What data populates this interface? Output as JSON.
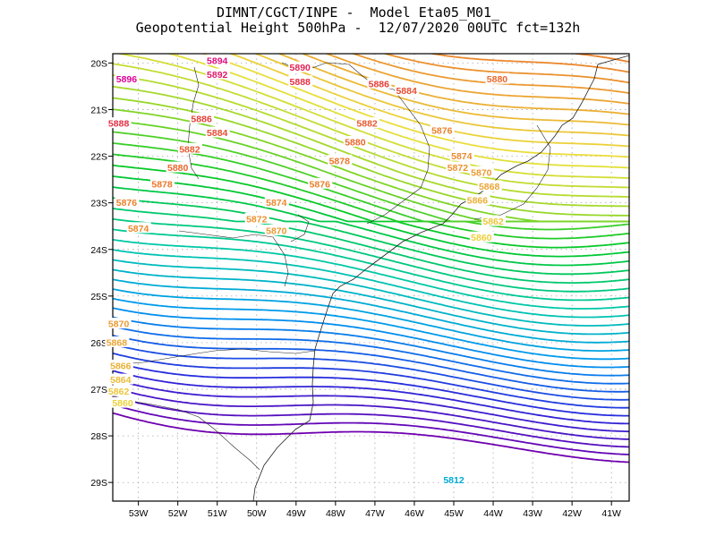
{
  "header": {
    "line1": "DIMNT/CGCT/INPE -  Model Eta05_M01_",
    "line2": "Geopotential Height 500hPa -  12/07/2020 00UTC fct=132h"
  },
  "axes": {
    "lat_labels": [
      "20S",
      "21S",
      "22S",
      "23S",
      "24S",
      "25S",
      "26S",
      "27S",
      "28S",
      "29S"
    ],
    "lon_labels": [
      "53W",
      "52W",
      "51W",
      "50W",
      "49W",
      "48W",
      "47W",
      "46W",
      "45W",
      "44W",
      "43W",
      "42W",
      "41W"
    ],
    "lat_range": [
      -29.4,
      -19.8
    ],
    "lon_range": [
      -53.65,
      -40.55
    ]
  },
  "chart_data": {
    "type": "contour",
    "variable": "Geopotential Height 500hPa",
    "contour_interval": 2,
    "value_range": [
      5782,
      5896
    ],
    "contour_labels": [
      {
        "value": 5896,
        "lon": -53.3,
        "lat": -20.35
      },
      {
        "value": 5894,
        "lon": -51.0,
        "lat": -19.95
      },
      {
        "value": 5892,
        "lon": -51.0,
        "lat": -20.25
      },
      {
        "value": 5890,
        "lon": -48.9,
        "lat": -20.1
      },
      {
        "value": 5888,
        "lon": -48.9,
        "lat": -20.4
      },
      {
        "value": 5886,
        "lon": -46.9,
        "lat": -20.45
      },
      {
        "value": 5884,
        "lon": -46.2,
        "lat": -20.6
      },
      {
        "value": 5888,
        "lon": -53.5,
        "lat": -21.3
      },
      {
        "value": 5886,
        "lon": -51.4,
        "lat": -21.2
      },
      {
        "value": 5884,
        "lon": -51.0,
        "lat": -21.5
      },
      {
        "value": 5882,
        "lon": -47.2,
        "lat": -21.3
      },
      {
        "value": 5880,
        "lon": -43.9,
        "lat": -20.35
      },
      {
        "value": 5882,
        "lon": -51.7,
        "lat": -21.85
      },
      {
        "value": 5880,
        "lon": -47.5,
        "lat": -21.7
      },
      {
        "value": 5876,
        "lon": -45.3,
        "lat": -21.45
      },
      {
        "value": 5880,
        "lon": -52.0,
        "lat": -22.25
      },
      {
        "value": 5878,
        "lon": -47.9,
        "lat": -22.1
      },
      {
        "value": 5874,
        "lon": -44.8,
        "lat": -22.0
      },
      {
        "value": 5872,
        "lon": -44.9,
        "lat": -22.25
      },
      {
        "value": 5870,
        "lon": -44.3,
        "lat": -22.35
      },
      {
        "value": 5878,
        "lon": -52.4,
        "lat": -22.6
      },
      {
        "value": 5876,
        "lon": -48.4,
        "lat": -22.6
      },
      {
        "value": 5868,
        "lon": -44.1,
        "lat": -22.65
      },
      {
        "value": 5876,
        "lon": -53.3,
        "lat": -23.0
      },
      {
        "value": 5874,
        "lon": -49.5,
        "lat": -23.0
      },
      {
        "value": 5866,
        "lon": -44.4,
        "lat": -22.95
      },
      {
        "value": 5872,
        "lon": -50.0,
        "lat": -23.35
      },
      {
        "value": 5862,
        "lon": -44.0,
        "lat": -23.4
      },
      {
        "value": 5874,
        "lon": -53.0,
        "lat": -23.55
      },
      {
        "value": 5870,
        "lon": -49.5,
        "lat": -23.6
      },
      {
        "value": 5860,
        "lon": -44.3,
        "lat": -23.75
      },
      {
        "value": 5870,
        "lon": -53.5,
        "lat": -25.6
      },
      {
        "value": 5868,
        "lon": -53.55,
        "lat": -26.0
      },
      {
        "value": 5866,
        "lon": -53.45,
        "lat": -26.5
      },
      {
        "value": 5864,
        "lon": -53.45,
        "lat": -26.8
      },
      {
        "value": 5862,
        "lon": -53.5,
        "lat": -27.05
      },
      {
        "value": 5860,
        "lon": -53.4,
        "lat": -27.3
      },
      {
        "value": 5812,
        "lon": -45.0,
        "lat": -28.95
      }
    ]
  }
}
